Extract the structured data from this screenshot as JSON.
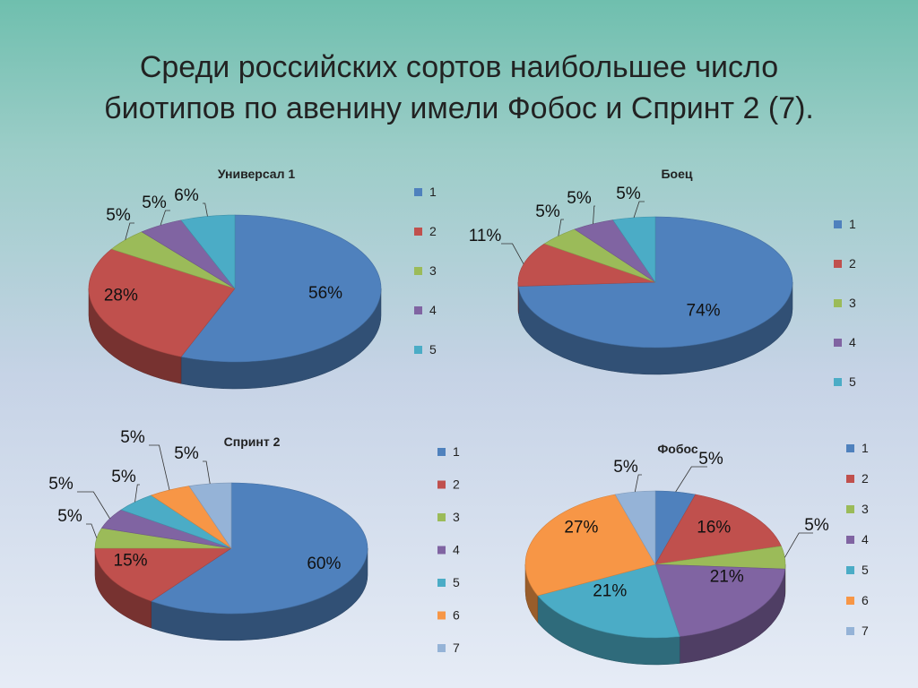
{
  "title_lines": [
    "Среди российских сортов наибольшее число",
    "биотипов по авенину имели Фобос и Спринт 2 (7)."
  ],
  "colors": {
    "1": "#4f81bd",
    "2": "#c0504d",
    "3": "#9bbb59",
    "4": "#8064a2",
    "5": "#4bacc6",
    "6": "#f79646",
    "7": "#95b3d7"
  },
  "chart_data": [
    {
      "type": "pie",
      "title": "Универсал 1",
      "categories": [
        "1",
        "2",
        "3",
        "4",
        "5"
      ],
      "values": [
        56,
        28,
        5,
        5,
        6
      ],
      "labels": [
        "56%",
        "28%",
        "5%",
        "5%",
        "6%"
      ],
      "legend": "right"
    },
    {
      "type": "pie",
      "title": "Боец",
      "categories": [
        "1",
        "2",
        "3",
        "4",
        "5"
      ],
      "values": [
        74,
        11,
        5,
        5,
        5
      ],
      "labels": [
        "74%",
        "11%",
        "5%",
        "5%",
        "5%"
      ],
      "legend": "right"
    },
    {
      "type": "pie",
      "title": "Спринт 2",
      "categories": [
        "1",
        "2",
        "3",
        "4",
        "5",
        "6",
        "7"
      ],
      "values": [
        60,
        15,
        5,
        5,
        5,
        5,
        5
      ],
      "labels": [
        "60%",
        "15%",
        "5%",
        "5%",
        "5%",
        "5%",
        "5%"
      ],
      "legend": "right"
    },
    {
      "type": "pie",
      "title": "Фобос",
      "categories": [
        "1",
        "2",
        "3",
        "4",
        "5",
        "6",
        "7"
      ],
      "values": [
        5,
        16,
        5,
        21,
        21,
        27,
        5
      ],
      "labels": [
        "5%",
        "16%",
        "5%",
        "21%",
        "21%",
        "27%",
        "5%"
      ],
      "legend": "right"
    }
  ]
}
